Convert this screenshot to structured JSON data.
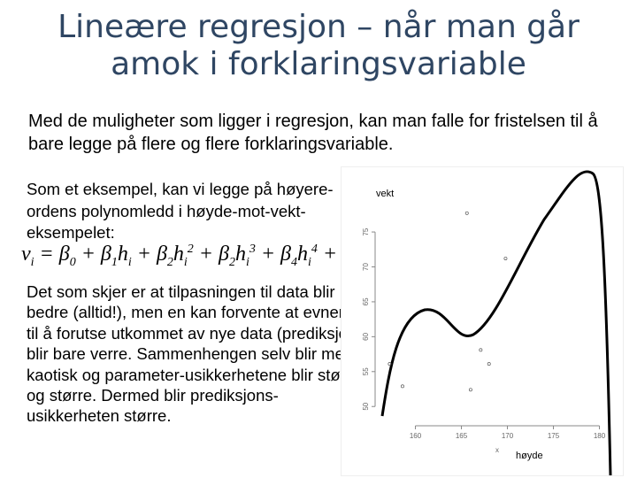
{
  "header": {
    "title": "Lineære regresjon – når man går amok i forklaringsvariable"
  },
  "intro": "Med de muligheter som ligger i regresjon, kan man falle for fristelsen til å bare legge på flere og flere forklaringsvariable.",
  "paragraph1": "Som et eksempel, kan vi legge på høyere-ordens polynomledd i høyde-mot-vekt-eksempelet:",
  "formula": [
    {
      "t": "v",
      "sub": "i"
    },
    {
      "t": " = β",
      "sub": "0"
    },
    {
      "t": " + β",
      "sub": "1"
    },
    {
      "t": "h",
      "sub": "i"
    },
    {
      "t": " + β",
      "sub": "2"
    },
    {
      "t": "h",
      "sub": "i",
      "sup": "2"
    },
    {
      "t": " + β",
      "sub": "2"
    },
    {
      "t": "h",
      "sub": "i",
      "sup": "3"
    },
    {
      "t": " + β",
      "sub": "4"
    },
    {
      "t": "h",
      "sub": "i",
      "sup": "4"
    },
    {
      "t": " + ε",
      "sub": "i"
    }
  ],
  "paragraph2": "Det som skjer er at tilpasningen til data blir bedre (alltid!), men en kan forvente at evnen til å forutse utkommet av nye data (prediksjon) blir bare verre. Sammenhengen selv blir mer kaotisk og parameter-usikkerhetene blir større og større. Dermed blir prediksjons-usikkerheten større.",
  "figure": {
    "y_label": "vekt",
    "x_label": "høyde",
    "x_marker": "x",
    "xlim": [
      156.2,
      181.2
    ],
    "ylim": [
      48,
      79.7
    ],
    "xticks": [
      160,
      165,
      170,
      175,
      180
    ],
    "yticks": [
      50,
      55,
      60,
      65,
      70,
      75
    ],
    "x": [
      165.6,
      169.8,
      157.2,
      158.6,
      167.1,
      168,
      166
    ],
    "y": [
      77.7,
      71.2,
      56.1,
      52.9,
      58.1,
      56.1,
      52.4
    ]
  }
}
